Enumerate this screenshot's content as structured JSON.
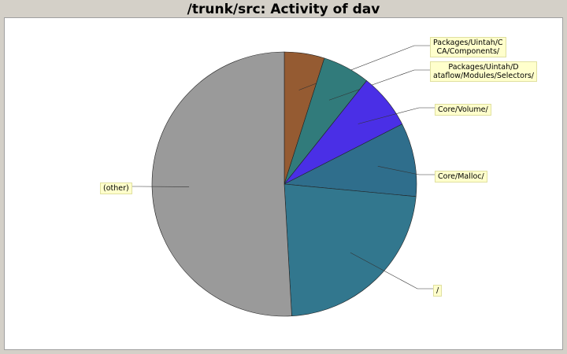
{
  "title": "/trunk/src: Activity of dav",
  "chart_data": {
    "type": "pie",
    "title": "/trunk/src: Activity of dav",
    "slices": [
      {
        "label": "Packages/Uintah/C\nCA/Components/",
        "value": 4.9,
        "color": "#955b32"
      },
      {
        "label": "Packages/Uintah/D\nataflow/Modules/Selectors/",
        "value": 5.8,
        "color": "#317b7b"
      },
      {
        "label": "Core/Volume/",
        "value": 6.8,
        "color": "#4a2fe6"
      },
      {
        "label": "Core/Malloc/",
        "value": 9.0,
        "color": "#2f6e8c"
      },
      {
        "label": "/",
        "value": 22.6,
        "color": "#32778e"
      },
      {
        "label": "(other)",
        "value": 50.9,
        "color": "#9a9a9a"
      }
    ]
  }
}
